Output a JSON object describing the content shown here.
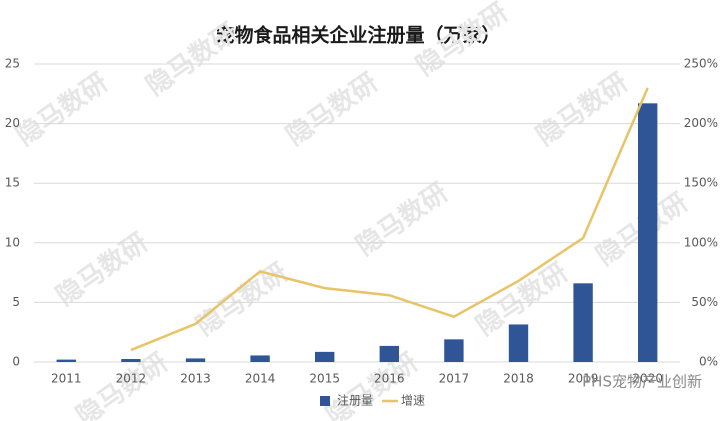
{
  "chart_data": {
    "type": "bar",
    "title": "宠物食品相关企业注册量（万家）",
    "categories": [
      "2011",
      "2012",
      "2013",
      "2014",
      "2015",
      "2016",
      "2017",
      "2018",
      "2019",
      "2020"
    ],
    "series": [
      {
        "name": "注册量",
        "type": "bar",
        "color": "#2f5597",
        "values": [
          0.2,
          0.25,
          0.3,
          0.55,
          0.85,
          1.35,
          1.9,
          3.15,
          6.6,
          21.7
        ]
      },
      {
        "name": "增速",
        "type": "line",
        "axis": "y2",
        "color": "#e8c468",
        "values": [
          null,
          10,
          32,
          76,
          62,
          56,
          38,
          68,
          104,
          230
        ]
      }
    ],
    "ylim": [
      0,
      25
    ],
    "yticks": [
      0,
      5,
      10,
      15,
      20,
      25
    ],
    "y2lim": [
      0,
      250
    ],
    "y2ticks": [
      {
        "value": 0,
        "label": "0%"
      },
      {
        "value": 50,
        "label": "50%"
      },
      {
        "value": 100,
        "label": "100%"
      },
      {
        "value": 150,
        "label": "150%"
      },
      {
        "value": 200,
        "label": "200%"
      },
      {
        "value": 250,
        "label": "250%"
      }
    ],
    "grid": true,
    "legend": "bottom",
    "watermark": "隐马数研",
    "source": "PHS宠物产业创新"
  }
}
